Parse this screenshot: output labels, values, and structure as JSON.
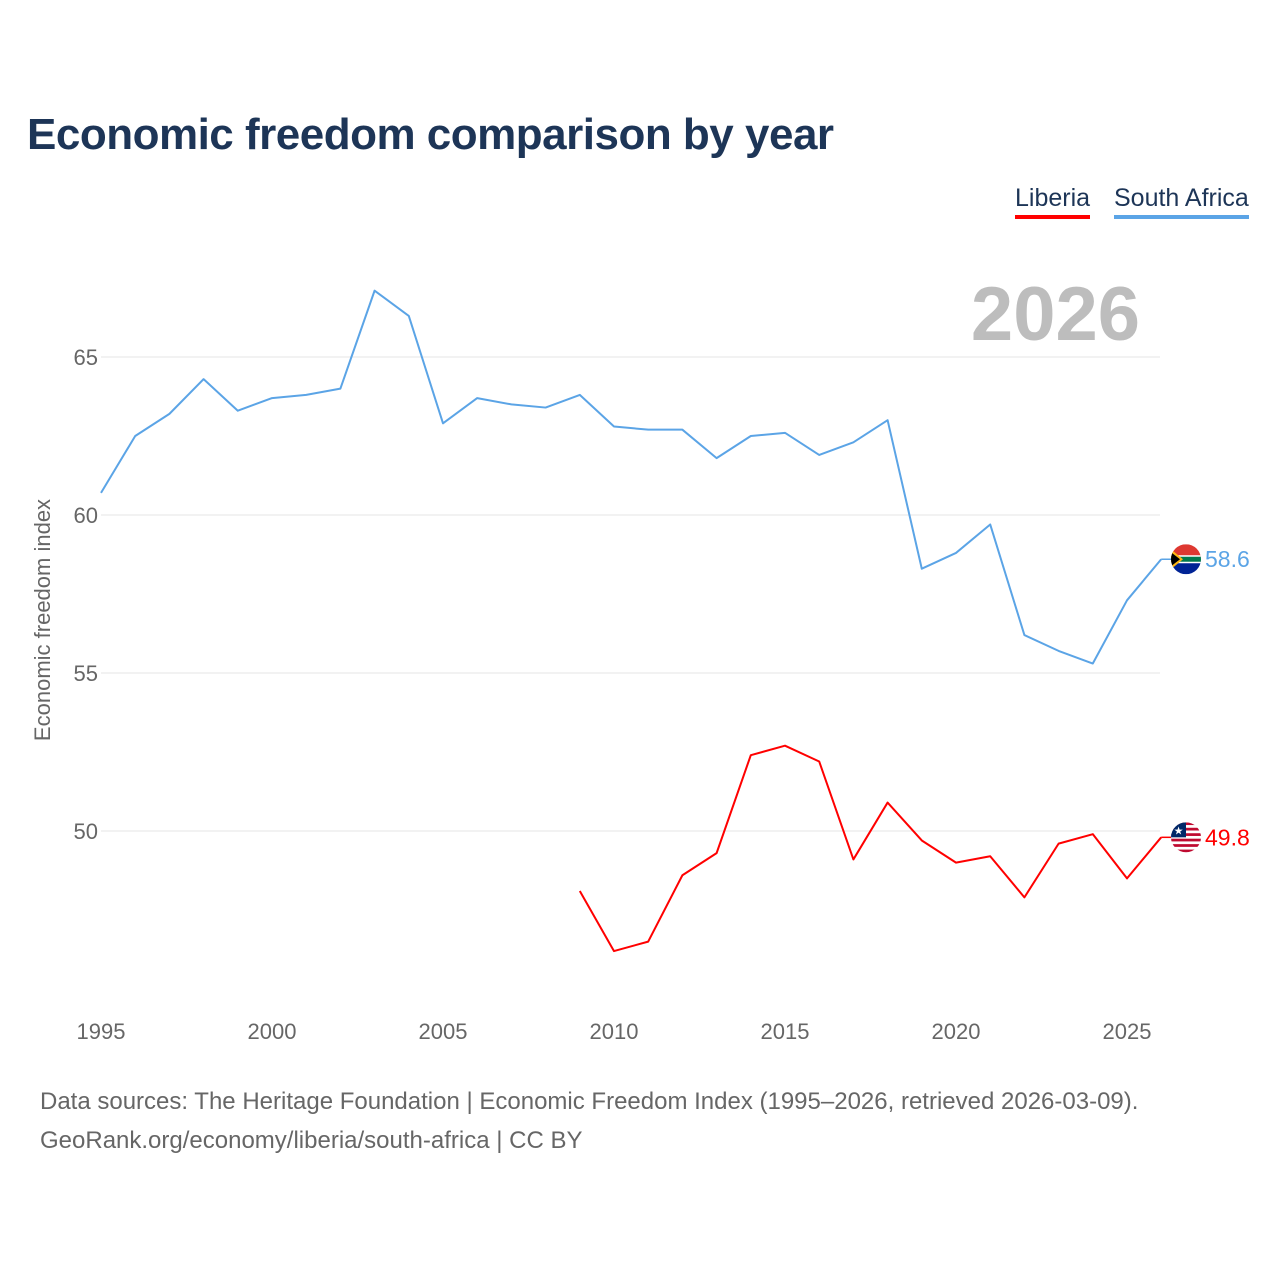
{
  "chart_data": {
    "type": "line",
    "title": "Economic freedom comparison by year",
    "ylabel": "Economic freedom index",
    "xlabel": "",
    "year_label": "2026",
    "xlim": [
      1995,
      2026
    ],
    "ylim": [
      45,
      68
    ],
    "x_ticks": [
      "1995",
      "2000",
      "2005",
      "2010",
      "2015",
      "2020",
      "2025"
    ],
    "y_ticks": [
      "50",
      "55",
      "60",
      "65"
    ],
    "grid": true,
    "legend_position": "top-right",
    "series": [
      {
        "name": "Liberia",
        "color": "#ff0000",
        "end_label": "49.8",
        "flag": "liberia-flag",
        "x": [
          2009,
          2010,
          2011,
          2012,
          2013,
          2014,
          2015,
          2016,
          2017,
          2018,
          2019,
          2020,
          2021,
          2022,
          2023,
          2024,
          2025,
          2026
        ],
        "values": [
          48.1,
          46.2,
          46.5,
          48.6,
          49.3,
          52.4,
          52.7,
          52.2,
          49.1,
          50.9,
          49.7,
          49.0,
          49.2,
          47.9,
          49.6,
          49.9,
          48.5,
          49.8
        ]
      },
      {
        "name": "South Africa",
        "color": "#5ba4e6",
        "end_label": "58.6",
        "flag": "south-africa-flag",
        "x": [
          1995,
          1996,
          1997,
          1998,
          1999,
          2000,
          2001,
          2002,
          2003,
          2004,
          2005,
          2006,
          2007,
          2008,
          2009,
          2010,
          2011,
          2012,
          2013,
          2014,
          2015,
          2016,
          2017,
          2018,
          2019,
          2020,
          2021,
          2022,
          2023,
          2024,
          2025,
          2026
        ],
        "values": [
          60.7,
          62.5,
          63.2,
          64.3,
          63.3,
          63.7,
          63.8,
          64.0,
          67.1,
          66.3,
          62.9,
          63.7,
          63.5,
          63.4,
          63.8,
          62.8,
          62.7,
          62.7,
          61.8,
          62.5,
          62.6,
          61.9,
          62.3,
          63.0,
          58.3,
          58.8,
          59.7,
          56.2,
          55.7,
          55.3,
          57.3,
          58.6
        ]
      }
    ]
  },
  "footer": {
    "line1": "Data sources: The Heritage Foundation | Economic Freedom Index (1995–2026, retrieved 2026-03-09).",
    "line2": "GeoRank.org/economy/liberia/south-africa | CC BY"
  }
}
